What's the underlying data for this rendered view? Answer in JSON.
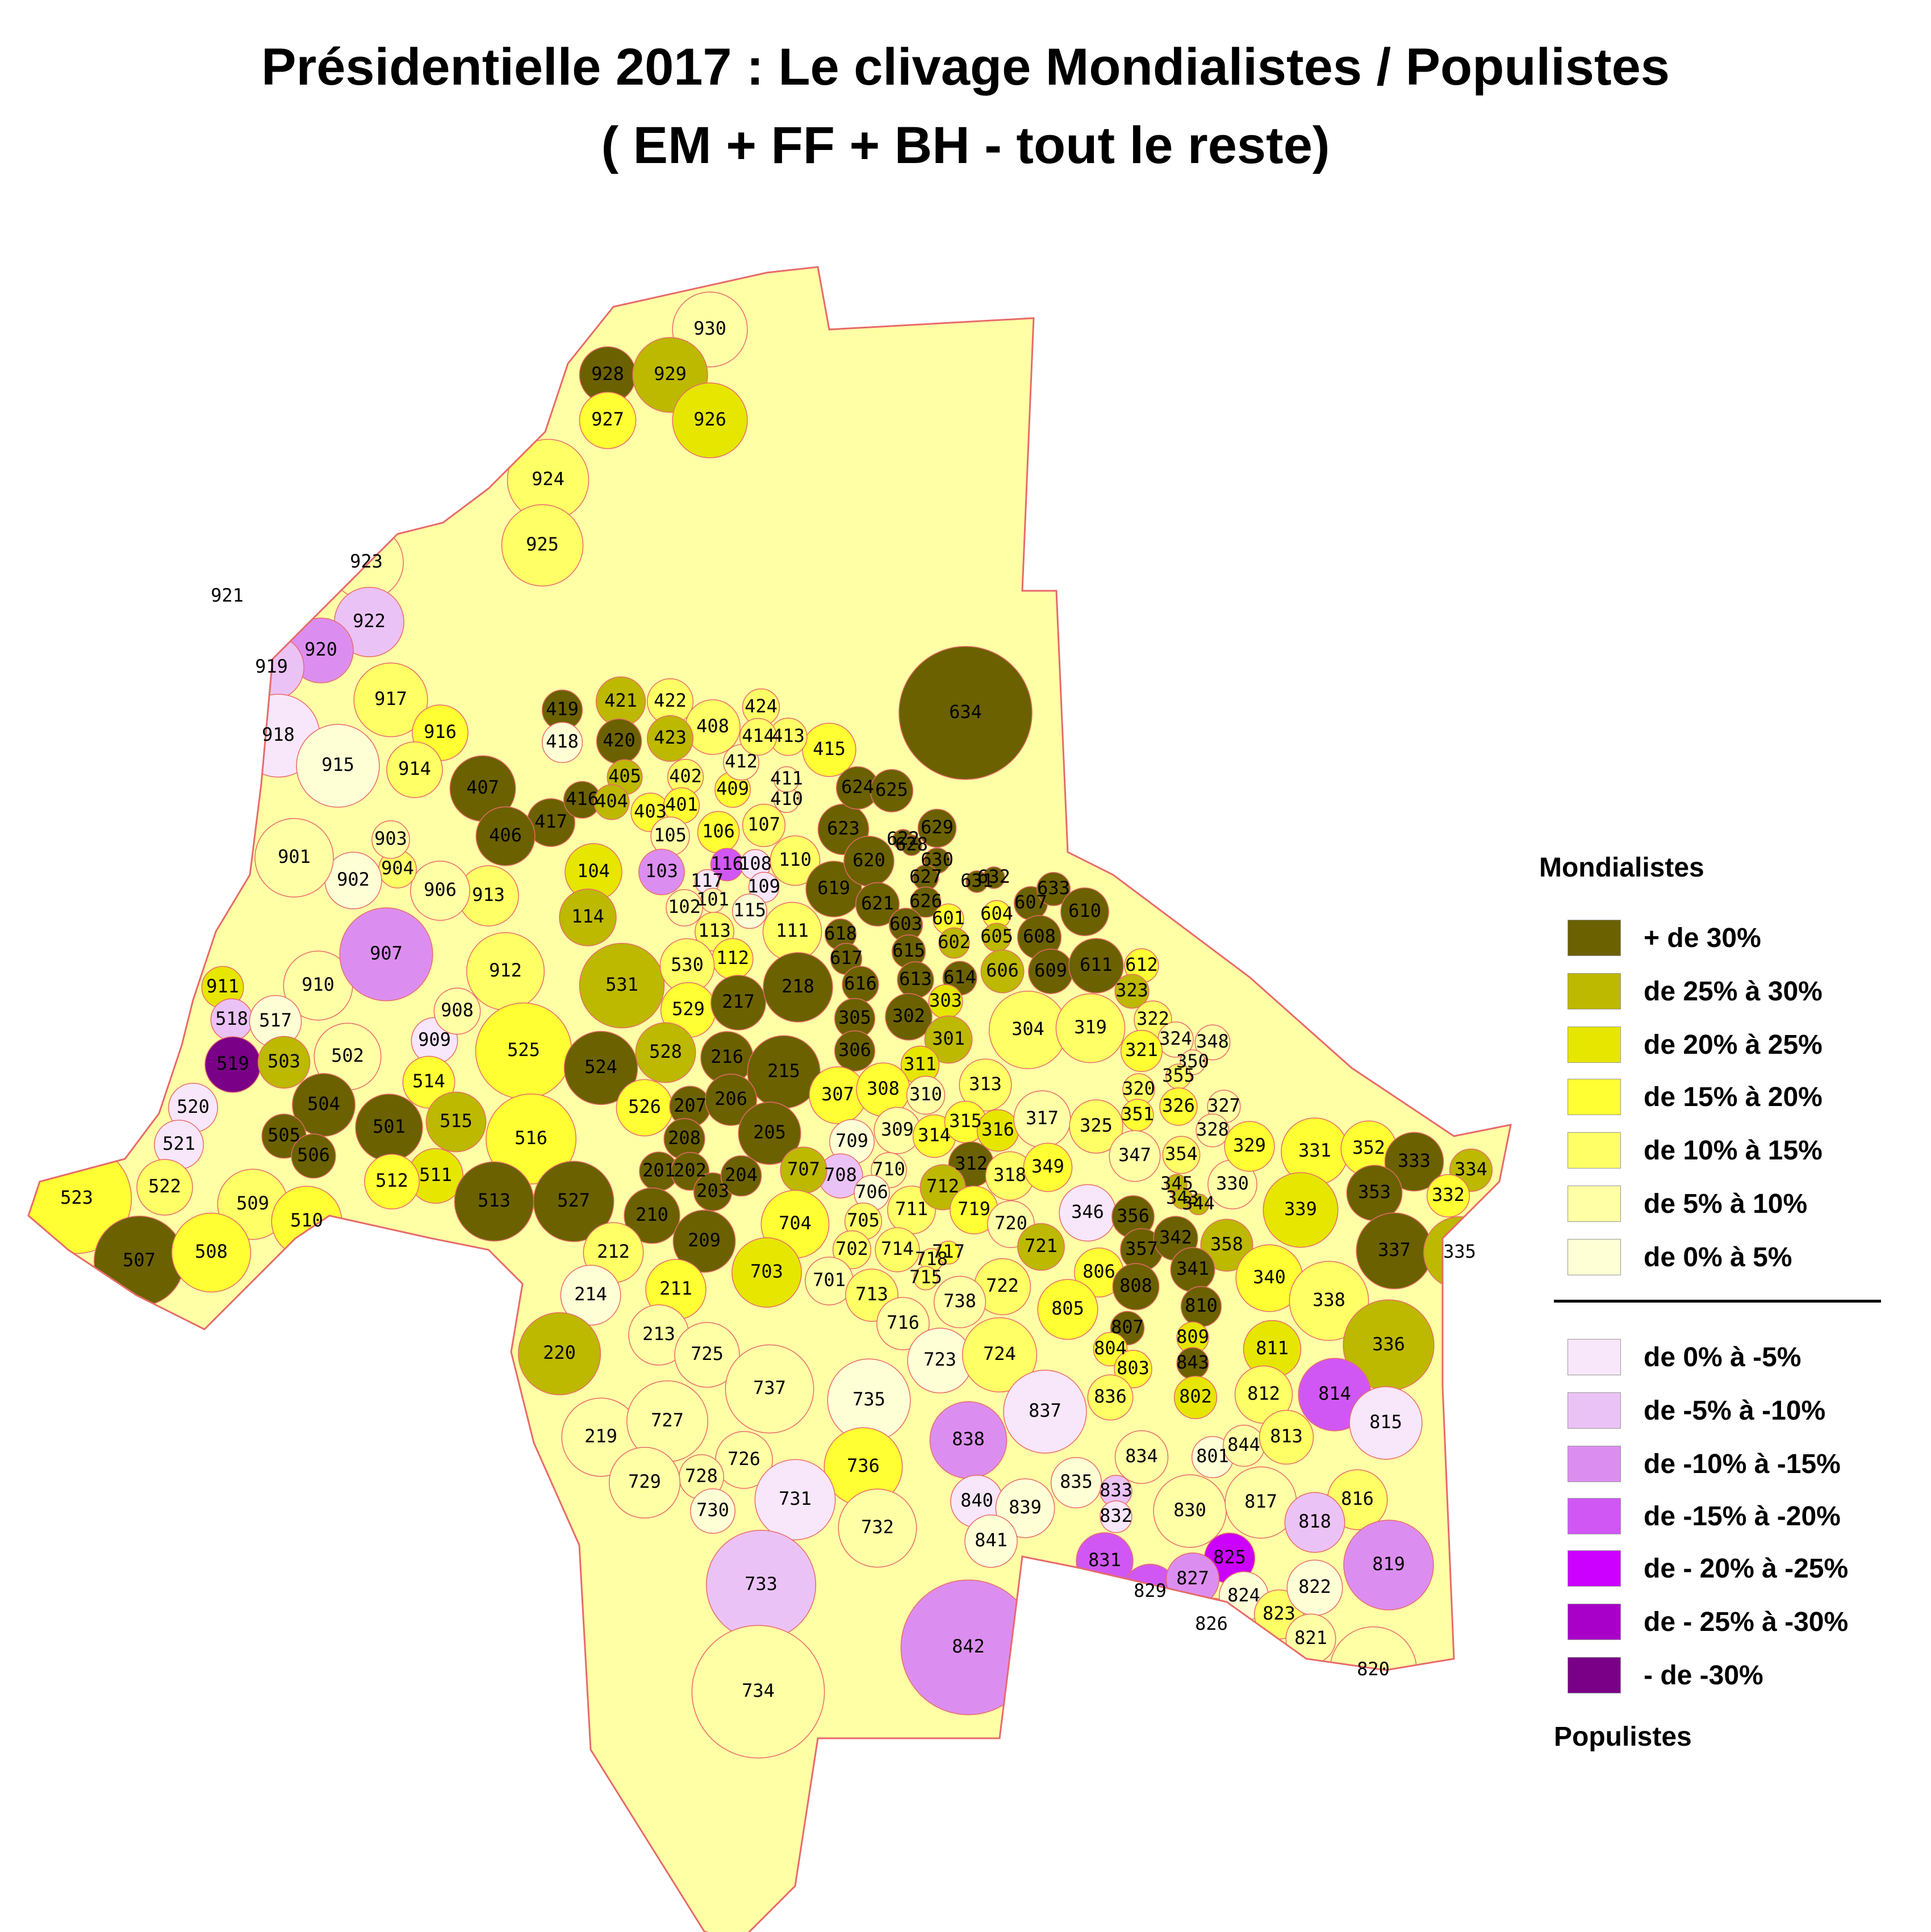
{
  "title": {
    "line1": "Présidentielle 2017 : Le clivage Mondialistes / Populistes",
    "line2": "( EM + FF + BH - tout le reste)"
  },
  "legend": {
    "top_heading": "Mondialistes",
    "bottom_heading": "Populistes",
    "items": [
      {
        "label": "+ de 30%",
        "color": "#6b6100"
      },
      {
        "label": "de 25% à 30%",
        "color": "#bdb800"
      },
      {
        "label": "de 20% à 25%",
        "color": "#e6e600"
      },
      {
        "label": "de 15% à 20%",
        "color": "#ffff33"
      },
      {
        "label": "de 10% à 15%",
        "color": "#ffff66"
      },
      {
        "label": "de 5% à 10%",
        "color": "#ffffa6"
      },
      {
        "label": "de 0% à 5%",
        "color": "#ffffd6"
      },
      {
        "label": "de 0% à -5%",
        "color": "#f8e6fb"
      },
      {
        "label": "de -5% à -10%",
        "color": "#ebc2f5"
      },
      {
        "label": "de -10% à -15%",
        "color": "#dc8ef0"
      },
      {
        "label": "de -15% à -20%",
        "color": "#d157f5"
      },
      {
        "label": "de - 20% à -25%",
        "color": "#cc00ff"
      },
      {
        "label": "de - 25% à -30%",
        "color": "#a800c8"
      },
      {
        "label": "- de -30%",
        "color": "#7a0087"
      }
    ]
  },
  "map": {
    "outline_color": "#e86a6a",
    "districts": [
      {
        "id": "930",
        "cls": 5
      },
      {
        "id": "928",
        "cls": 0
      },
      {
        "id": "929",
        "cls": 1
      },
      {
        "id": "927",
        "cls": 3
      },
      {
        "id": "926",
        "cls": 2
      },
      {
        "id": "924",
        "cls": 4
      },
      {
        "id": "925",
        "cls": 4
      },
      {
        "id": "923",
        "cls": 5
      },
      {
        "id": "921",
        "cls": 9
      },
      {
        "id": "922",
        "cls": 8
      },
      {
        "id": "920",
        "cls": 9
      },
      {
        "id": "919",
        "cls": 8
      },
      {
        "id": "918",
        "cls": 7
      },
      {
        "id": "917",
        "cls": 4
      },
      {
        "id": "916",
        "cls": 3
      },
      {
        "id": "915",
        "cls": 6
      },
      {
        "id": "914",
        "cls": 4
      },
      {
        "id": "913",
        "cls": 4
      },
      {
        "id": "912",
        "cls": 4
      },
      {
        "id": "911",
        "cls": 2
      },
      {
        "id": "910",
        "cls": 5
      },
      {
        "id": "909",
        "cls": 7
      },
      {
        "id": "908",
        "cls": 5
      },
      {
        "id": "907",
        "cls": 9
      },
      {
        "id": "906",
        "cls": 5
      },
      {
        "id": "904",
        "cls": 4
      },
      {
        "id": "903",
        "cls": 5
      },
      {
        "id": "902",
        "cls": 6
      },
      {
        "id": "901",
        "cls": 5
      },
      {
        "id": "419",
        "cls": 0
      },
      {
        "id": "421",
        "cls": 1
      },
      {
        "id": "422",
        "cls": 4
      },
      {
        "id": "424",
        "cls": 4
      },
      {
        "id": "415",
        "cls": 3
      },
      {
        "id": "418",
        "cls": 6
      },
      {
        "id": "420",
        "cls": 0
      },
      {
        "id": "417",
        "cls": 0
      },
      {
        "id": "416",
        "cls": 0
      },
      {
        "id": "407",
        "cls": 0
      },
      {
        "id": "406",
        "cls": 0
      },
      {
        "id": "405",
        "cls": 1
      },
      {
        "id": "404",
        "cls": 1
      },
      {
        "id": "403",
        "cls": 3
      },
      {
        "id": "402",
        "cls": 4
      },
      {
        "id": "401",
        "cls": 3
      },
      {
        "id": "408",
        "cls": 4
      },
      {
        "id": "409",
        "cls": 3
      },
      {
        "id": "410",
        "cls": 5
      },
      {
        "id": "411",
        "cls": 5
      },
      {
        "id": "412",
        "cls": 5
      },
      {
        "id": "413",
        "cls": 4
      },
      {
        "id": "414",
        "cls": 4
      },
      {
        "id": "423",
        "cls": 1
      },
      {
        "id": "104",
        "cls": 2
      },
      {
        "id": "105",
        "cls": 5
      },
      {
        "id": "106",
        "cls": 3
      },
      {
        "id": "103",
        "cls": 9
      },
      {
        "id": "116",
        "cls": 10
      },
      {
        "id": "108",
        "cls": 7
      },
      {
        "id": "117",
        "cls": 7
      },
      {
        "id": "110",
        "cls": 4
      },
      {
        "id": "107",
        "cls": 4
      },
      {
        "id": "109",
        "cls": 7
      },
      {
        "id": "101",
        "cls": 5
      },
      {
        "id": "102",
        "cls": 5
      },
      {
        "id": "115",
        "cls": 6
      },
      {
        "id": "113",
        "cls": 4
      },
      {
        "id": "111",
        "cls": 4
      },
      {
        "id": "112",
        "cls": 3
      },
      {
        "id": "114",
        "cls": 1
      },
      {
        "id": "634",
        "cls": 0
      },
      {
        "id": "623",
        "cls": 0
      },
      {
        "id": "619",
        "cls": 0
      },
      {
        "id": "624",
        "cls": 0
      },
      {
        "id": "625",
        "cls": 0
      },
      {
        "id": "622",
        "cls": 0
      },
      {
        "id": "628",
        "cls": 0
      },
      {
        "id": "629",
        "cls": 0
      },
      {
        "id": "620",
        "cls": 0
      },
      {
        "id": "630",
        "cls": 0
      },
      {
        "id": "627",
        "cls": 0
      },
      {
        "id": "632",
        "cls": 0
      },
      {
        "id": "631",
        "cls": 0
      },
      {
        "id": "621",
        "cls": 0
      },
      {
        "id": "626",
        "cls": 0
      },
      {
        "id": "607",
        "cls": 0
      },
      {
        "id": "633",
        "cls": 0
      },
      {
        "id": "610",
        "cls": 0
      },
      {
        "id": "618",
        "cls": 0
      },
      {
        "id": "603",
        "cls": 0
      },
      {
        "id": "601",
        "cls": 3
      },
      {
        "id": "604",
        "cls": 3
      },
      {
        "id": "602",
        "cls": 1
      },
      {
        "id": "605",
        "cls": 1
      },
      {
        "id": "608",
        "cls": 0
      },
      {
        "id": "617",
        "cls": 0
      },
      {
        "id": "615",
        "cls": 0
      },
      {
        "id": "613",
        "cls": 0
      },
      {
        "id": "614",
        "cls": 0
      },
      {
        "id": "606",
        "cls": 1
      },
      {
        "id": "609",
        "cls": 0
      },
      {
        "id": "611",
        "cls": 0
      },
      {
        "id": "612",
        "cls": 3
      },
      {
        "id": "616",
        "cls": 0
      },
      {
        "id": "531",
        "cls": 1
      },
      {
        "id": "530",
        "cls": 4
      },
      {
        "id": "529",
        "cls": 3
      },
      {
        "id": "528",
        "cls": 1
      },
      {
        "id": "525",
        "cls": 3
      },
      {
        "id": "524",
        "cls": 0
      },
      {
        "id": "526",
        "cls": 3
      },
      {
        "id": "518",
        "cls": 8
      },
      {
        "id": "517",
        "cls": 6
      },
      {
        "id": "519",
        "cls": 13
      },
      {
        "id": "503",
        "cls": 1
      },
      {
        "id": "502",
        "cls": 5
      },
      {
        "id": "514",
        "cls": 3
      },
      {
        "id": "520",
        "cls": 7
      },
      {
        "id": "521",
        "cls": 7
      },
      {
        "id": "504",
        "cls": 0
      },
      {
        "id": "505",
        "cls": 0
      },
      {
        "id": "506",
        "cls": 0
      },
      {
        "id": "501",
        "cls": 0
      },
      {
        "id": "515",
        "cls": 1
      },
      {
        "id": "516",
        "cls": 3
      },
      {
        "id": "511",
        "cls": 2
      },
      {
        "id": "512",
        "cls": 3
      },
      {
        "id": "513",
        "cls": 0
      },
      {
        "id": "527",
        "cls": 0
      },
      {
        "id": "523",
        "cls": 3
      },
      {
        "id": "522",
        "cls": 4
      },
      {
        "id": "509",
        "cls": 4
      },
      {
        "id": "510",
        "cls": 3
      },
      {
        "id": "507",
        "cls": 0
      },
      {
        "id": "508",
        "cls": 3
      },
      {
        "id": "217",
        "cls": 0
      },
      {
        "id": "218",
        "cls": 0
      },
      {
        "id": "216",
        "cls": 0
      },
      {
        "id": "215",
        "cls": 0
      },
      {
        "id": "207",
        "cls": 0
      },
      {
        "id": "206",
        "cls": 0
      },
      {
        "id": "208",
        "cls": 0
      },
      {
        "id": "205",
        "cls": 0
      },
      {
        "id": "201",
        "cls": 0
      },
      {
        "id": "202",
        "cls": 0
      },
      {
        "id": "203",
        "cls": 0
      },
      {
        "id": "204",
        "cls": 0
      },
      {
        "id": "210",
        "cls": 0
      },
      {
        "id": "209",
        "cls": 0
      },
      {
        "id": "212",
        "cls": 4
      },
      {
        "id": "211",
        "cls": 3
      },
      {
        "id": "214",
        "cls": 6
      },
      {
        "id": "213",
        "cls": 5
      },
      {
        "id": "220",
        "cls": 1
      },
      {
        "id": "219",
        "cls": 5
      },
      {
        "id": "305",
        "cls": 0
      },
      {
        "id": "302",
        "cls": 0
      },
      {
        "id": "303",
        "cls": 2
      },
      {
        "id": "301",
        "cls": 1
      },
      {
        "id": "306",
        "cls": 0
      },
      {
        "id": "311",
        "cls": 2
      },
      {
        "id": "304",
        "cls": 4
      },
      {
        "id": "319",
        "cls": 4
      },
      {
        "id": "323",
        "cls": 1
      },
      {
        "id": "322",
        "cls": 4
      },
      {
        "id": "324",
        "cls": 5
      },
      {
        "id": "348",
        "cls": 5
      },
      {
        "id": "321",
        "cls": 3
      },
      {
        "id": "350",
        "cls": 5
      },
      {
        "id": "355",
        "cls": 4
      },
      {
        "id": "320",
        "cls": 4
      },
      {
        "id": "326",
        "cls": 3
      },
      {
        "id": "351",
        "cls": 3
      },
      {
        "id": "327",
        "cls": 5
      },
      {
        "id": "307",
        "cls": 3
      },
      {
        "id": "308",
        "cls": 3
      },
      {
        "id": "310",
        "cls": 5
      },
      {
        "id": "313",
        "cls": 4
      },
      {
        "id": "309",
        "cls": 5
      },
      {
        "id": "314",
        "cls": 3
      },
      {
        "id": "315",
        "cls": 3
      },
      {
        "id": "316",
        "cls": 2
      },
      {
        "id": "317",
        "cls": 5
      },
      {
        "id": "325",
        "cls": 4
      },
      {
        "id": "328",
        "cls": 5
      },
      {
        "id": "312",
        "cls": 0
      },
      {
        "id": "318",
        "cls": 4
      },
      {
        "id": "349",
        "cls": 3
      },
      {
        "id": "347",
        "cls": 5
      },
      {
        "id": "354",
        "cls": 4
      },
      {
        "id": "345",
        "cls": 1
      },
      {
        "id": "343",
        "cls": 1
      },
      {
        "id": "344",
        "cls": 1
      },
      {
        "id": "330",
        "cls": 5
      },
      {
        "id": "329",
        "cls": 3
      },
      {
        "id": "331",
        "cls": 3
      },
      {
        "id": "352",
        "cls": 3
      },
      {
        "id": "333",
        "cls": 0
      },
      {
        "id": "334",
        "cls": 1
      },
      {
        "id": "332",
        "cls": 3
      },
      {
        "id": "353",
        "cls": 0
      },
      {
        "id": "339",
        "cls": 2
      },
      {
        "id": "346",
        "cls": 7
      },
      {
        "id": "356",
        "cls": 0
      },
      {
        "id": "357",
        "cls": 0
      },
      {
        "id": "342",
        "cls": 0
      },
      {
        "id": "358",
        "cls": 1
      },
      {
        "id": "341",
        "cls": 0
      },
      {
        "id": "340",
        "cls": 3
      },
      {
        "id": "338",
        "cls": 4
      },
      {
        "id": "337",
        "cls": 0
      },
      {
        "id": "335",
        "cls": 1
      },
      {
        "id": "336",
        "cls": 1
      },
      {
        "id": "709",
        "cls": 6
      },
      {
        "id": "708",
        "cls": 8
      },
      {
        "id": "707",
        "cls": 1
      },
      {
        "id": "710",
        "cls": 5
      },
      {
        "id": "706",
        "cls": 6
      },
      {
        "id": "704",
        "cls": 3
      },
      {
        "id": "705",
        "cls": 4
      },
      {
        "id": "711",
        "cls": 4
      },
      {
        "id": "712",
        "cls": 1
      },
      {
        "id": "719",
        "cls": 3
      },
      {
        "id": "720",
        "cls": 5
      },
      {
        "id": "721",
        "cls": 1
      },
      {
        "id": "703",
        "cls": 2
      },
      {
        "id": "702",
        "cls": 4
      },
      {
        "id": "714",
        "cls": 4
      },
      {
        "id": "718",
        "cls": 4
      },
      {
        "id": "717",
        "cls": 3
      },
      {
        "id": "701",
        "cls": 5
      },
      {
        "id": "713",
        "cls": 4
      },
      {
        "id": "715",
        "cls": 4
      },
      {
        "id": "722",
        "cls": 4
      },
      {
        "id": "716",
        "cls": 5
      },
      {
        "id": "738",
        "cls": 5
      },
      {
        "id": "723",
        "cls": 6
      },
      {
        "id": "724",
        "cls": 4
      },
      {
        "id": "725",
        "cls": 5
      },
      {
        "id": "737",
        "cls": 5
      },
      {
        "id": "735",
        "cls": 6
      },
      {
        "id": "727",
        "cls": 5
      },
      {
        "id": "726",
        "cls": 5
      },
      {
        "id": "736",
        "cls": 3
      },
      {
        "id": "728",
        "cls": 5
      },
      {
        "id": "729",
        "cls": 5
      },
      {
        "id": "730",
        "cls": 6
      },
      {
        "id": "731",
        "cls": 7
      },
      {
        "id": "732",
        "cls": 5
      },
      {
        "id": "733",
        "cls": 8
      },
      {
        "id": "734",
        "cls": 5
      },
      {
        "id": "806",
        "cls": 3
      },
      {
        "id": "805",
        "cls": 3
      },
      {
        "id": "808",
        "cls": 0
      },
      {
        "id": "810",
        "cls": 0
      },
      {
        "id": "807",
        "cls": 0
      },
      {
        "id": "804",
        "cls": 3
      },
      {
        "id": "803",
        "cls": 3
      },
      {
        "id": "809",
        "cls": 2
      },
      {
        "id": "843",
        "cls": 0
      },
      {
        "id": "811",
        "cls": 2
      },
      {
        "id": "836",
        "cls": 4
      },
      {
        "id": "802",
        "cls": 2
      },
      {
        "id": "812",
        "cls": 4
      },
      {
        "id": "814",
        "cls": 10
      },
      {
        "id": "815",
        "cls": 7
      },
      {
        "id": "837",
        "cls": 7
      },
      {
        "id": "838",
        "cls": 9
      },
      {
        "id": "834",
        "cls": 5
      },
      {
        "id": "801",
        "cls": 6
      },
      {
        "id": "844",
        "cls": 5
      },
      {
        "id": "813",
        "cls": 4
      },
      {
        "id": "835",
        "cls": 6
      },
      {
        "id": "833",
        "cls": 8
      },
      {
        "id": "832",
        "cls": 7
      },
      {
        "id": "830",
        "cls": 5
      },
      {
        "id": "817",
        "cls": 5
      },
      {
        "id": "816",
        "cls": 4
      },
      {
        "id": "818",
        "cls": 8
      },
      {
        "id": "840",
        "cls": 7
      },
      {
        "id": "839",
        "cls": 6
      },
      {
        "id": "841",
        "cls": 6
      },
      {
        "id": "831",
        "cls": 10
      },
      {
        "id": "825",
        "cls": 11
      },
      {
        "id": "829",
        "cls": 10
      },
      {
        "id": "827",
        "cls": 9
      },
      {
        "id": "826",
        "cls": 8
      },
      {
        "id": "824",
        "cls": 6
      },
      {
        "id": "823",
        "cls": 4
      },
      {
        "id": "822",
        "cls": 6
      },
      {
        "id": "821",
        "cls": 5
      },
      {
        "id": "819",
        "cls": 9
      },
      {
        "id": "820",
        "cls": 5
      },
      {
        "id": "842",
        "cls": 9
      }
    ]
  }
}
